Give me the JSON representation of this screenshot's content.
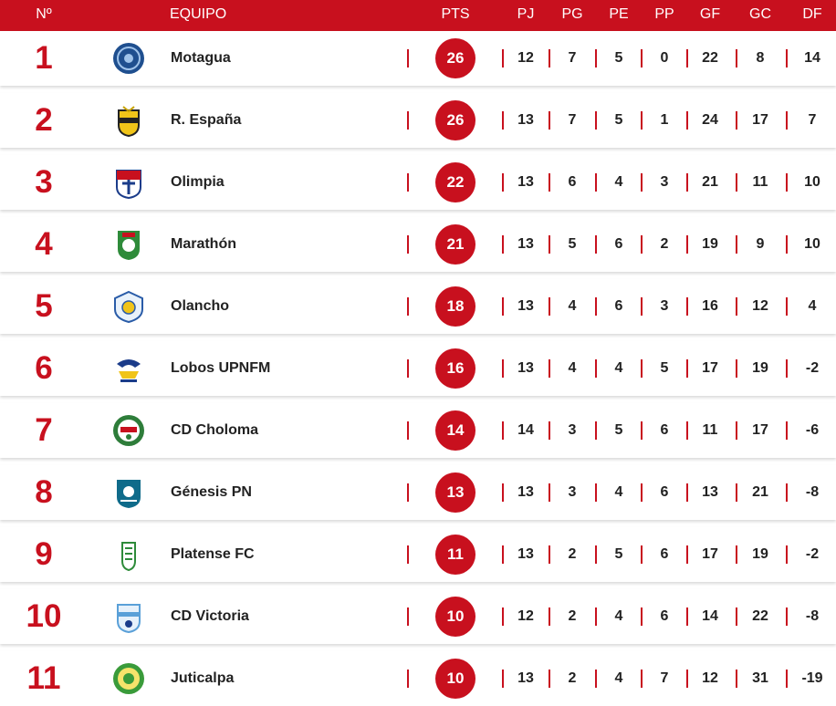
{
  "header": {
    "pos": "Nº",
    "team": "EQUIPO",
    "pts": "PTS",
    "pj": "PJ",
    "pg": "PG",
    "pe": "PE",
    "pp": "PP",
    "gf": "GF",
    "gc": "GC",
    "df": "DF"
  },
  "rows": [
    {
      "pos": "1",
      "team": "Motagua",
      "pts": "26",
      "pj": "12",
      "pg": "7",
      "pe": "5",
      "pp": "0",
      "gf": "22",
      "gc": "8",
      "df": "14",
      "logo": "motagua-crest-icon"
    },
    {
      "pos": "2",
      "team": "R. España",
      "pts": "26",
      "pj": "13",
      "pg": "7",
      "pe": "5",
      "pp": "1",
      "gf": "24",
      "gc": "17",
      "df": "7",
      "logo": "real-espana-crest-icon"
    },
    {
      "pos": "3",
      "team": "Olimpia",
      "pts": "22",
      "pj": "13",
      "pg": "6",
      "pe": "4",
      "pp": "3",
      "gf": "21",
      "gc": "11",
      "df": "10",
      "logo": "olimpia-crest-icon"
    },
    {
      "pos": "4",
      "team": "Marathón",
      "pts": "21",
      "pj": "13",
      "pg": "5",
      "pe": "6",
      "pp": "2",
      "gf": "19",
      "gc": "9",
      "df": "10",
      "logo": "marathon-crest-icon"
    },
    {
      "pos": "5",
      "team": "Olancho",
      "pts": "18",
      "pj": "13",
      "pg": "4",
      "pe": "6",
      "pp": "3",
      "gf": "16",
      "gc": "12",
      "df": "4",
      "logo": "olancho-crest-icon"
    },
    {
      "pos": "6",
      "team": "Lobos UPNFM",
      "pts": "16",
      "pj": "13",
      "pg": "4",
      "pe": "4",
      "pp": "5",
      "gf": "17",
      "gc": "19",
      "df": "-2",
      "logo": "lobos-upnfm-crest-icon"
    },
    {
      "pos": "7",
      "team": "CD Choloma",
      "pts": "14",
      "pj": "14",
      "pg": "3",
      "pe": "5",
      "pp": "6",
      "gf": "11",
      "gc": "17",
      "df": "-6",
      "logo": "choloma-crest-icon"
    },
    {
      "pos": "8",
      "team": "Génesis PN",
      "pts": "13",
      "pj": "13",
      "pg": "3",
      "pe": "4",
      "pp": "6",
      "gf": "13",
      "gc": "21",
      "df": "-8",
      "logo": "genesis-crest-icon"
    },
    {
      "pos": "9",
      "team": "Platense FC",
      "pts": "11",
      "pj": "13",
      "pg": "2",
      "pe": "5",
      "pp": "6",
      "gf": "17",
      "gc": "19",
      "df": "-2",
      "logo": "platense-crest-icon"
    },
    {
      "pos": "10",
      "team": "CD Victoria",
      "pts": "10",
      "pj": "12",
      "pg": "2",
      "pe": "4",
      "pp": "6",
      "gf": "14",
      "gc": "22",
      "df": "-8",
      "logo": "victoria-crest-icon"
    },
    {
      "pos": "11",
      "team": "Juticalpa",
      "pts": "10",
      "pj": "13",
      "pg": "2",
      "pe": "4",
      "pp": "7",
      "gf": "12",
      "gc": "31",
      "df": "-19",
      "logo": "juticalpa-crest-icon"
    }
  ],
  "colors": {
    "accent": "#c8101e"
  }
}
